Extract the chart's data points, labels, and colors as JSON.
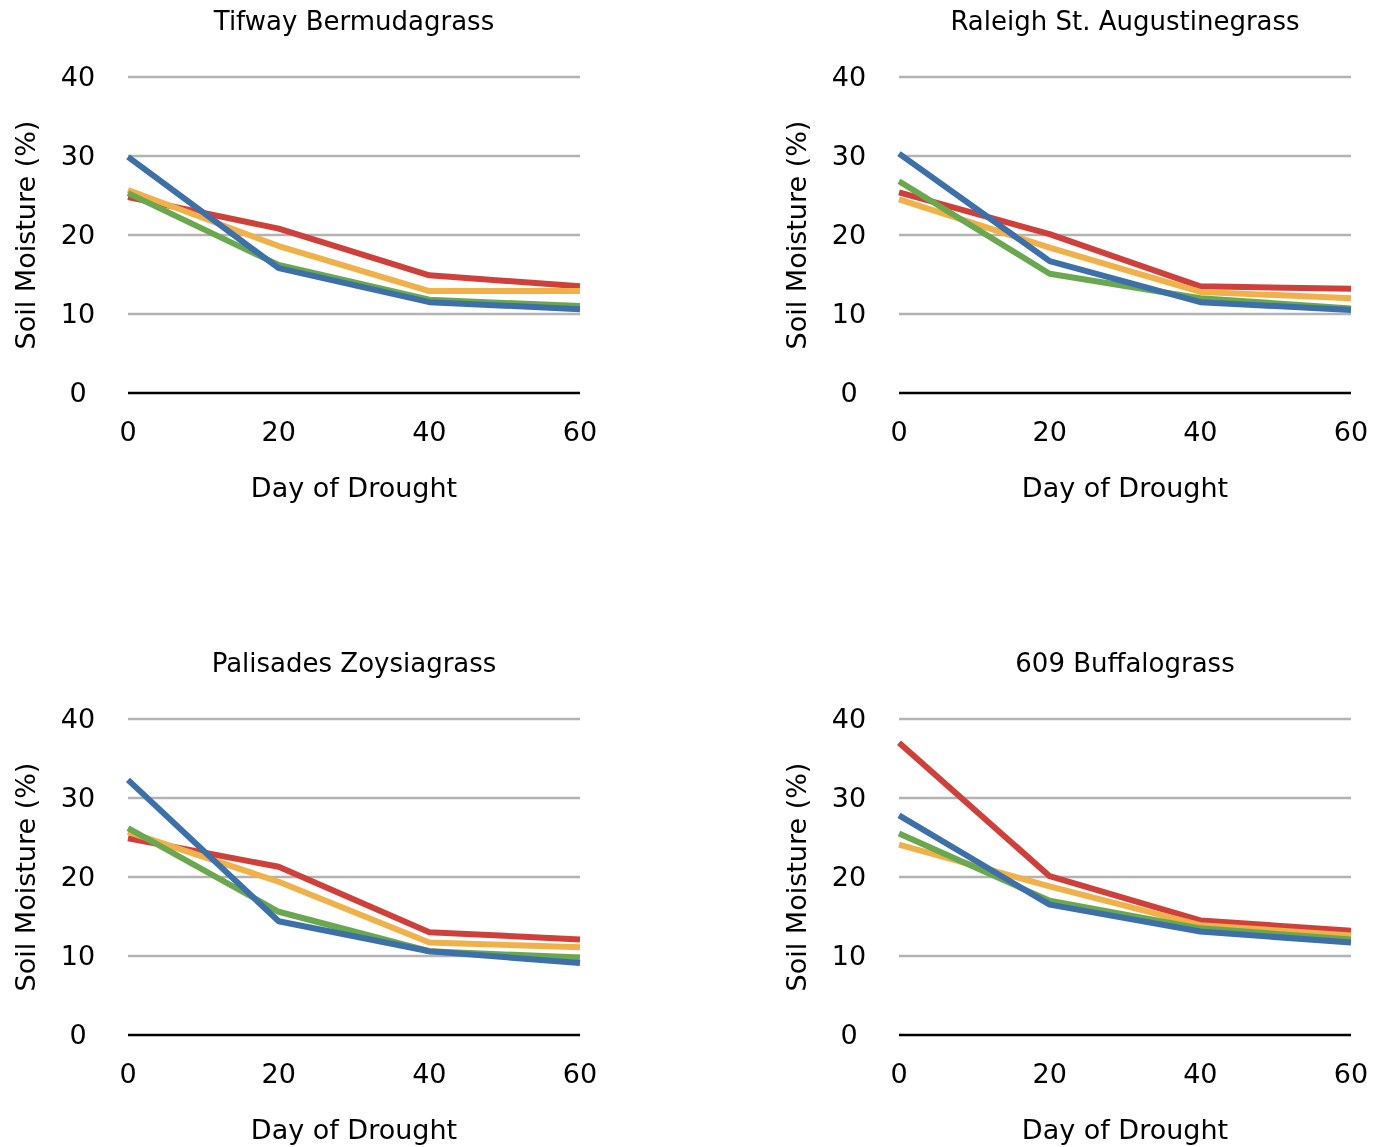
{
  "chart_data": [
    {
      "type": "line",
      "title": "Tifway Bermudagrass",
      "xlabel": "Day of Drought",
      "ylabel": "Soil Moisture (%)",
      "x": [
        0,
        20,
        40,
        60
      ],
      "xlim": [
        0,
        60
      ],
      "xticks": [
        0,
        20,
        40,
        60
      ],
      "ylim": [
        0,
        40
      ],
      "yticks": [
        0,
        10,
        20,
        30,
        40
      ],
      "grid": "y",
      "marker": "none",
      "line_style": "solid",
      "series": [
        {
          "color": "#d0403b",
          "values": [
            24.8,
            20.8,
            14.9,
            13.5
          ]
        },
        {
          "color": "#f0b04a",
          "values": [
            25.7,
            18.6,
            12.9,
            12.9
          ]
        },
        {
          "color": "#6aa84f",
          "values": [
            25.3,
            16.2,
            11.8,
            11.0
          ]
        },
        {
          "color": "#3d6fa8",
          "values": [
            29.9,
            15.8,
            11.5,
            10.6
          ]
        }
      ]
    },
    {
      "type": "line",
      "title": "Raleigh St. Augustinegrass",
      "xlabel": "Day of Drought",
      "ylabel": "Soil Moisture (%)",
      "x": [
        0,
        20,
        40,
        60
      ],
      "xlim": [
        0,
        60
      ],
      "xticks": [
        0,
        20,
        40,
        60
      ],
      "ylim": [
        0,
        40
      ],
      "yticks": [
        0,
        10,
        20,
        30,
        40
      ],
      "grid": "y",
      "marker": "none",
      "line_style": "solid",
      "series": [
        {
          "color": "#d0403b",
          "values": [
            25.4,
            20.1,
            13.5,
            13.2
          ]
        },
        {
          "color": "#f0b04a",
          "values": [
            24.5,
            18.4,
            12.8,
            12.0
          ]
        },
        {
          "color": "#6aa84f",
          "values": [
            26.8,
            15.1,
            12.0,
            10.7
          ]
        },
        {
          "color": "#3d6fa8",
          "values": [
            30.3,
            16.7,
            11.5,
            10.5
          ]
        }
      ]
    },
    {
      "type": "line",
      "title": "Palisades Zoysiagrass",
      "xlabel": "Day of Drought",
      "ylabel": "Soil Moisture (%)",
      "x": [
        0,
        20,
        40,
        60
      ],
      "xlim": [
        0,
        60
      ],
      "xticks": [
        0,
        20,
        40,
        60
      ],
      "ylim": [
        0,
        40
      ],
      "yticks": [
        0,
        10,
        20,
        30,
        40
      ],
      "grid": "y",
      "marker": "none",
      "line_style": "solid",
      "series": [
        {
          "color": "#d0403b",
          "values": [
            24.9,
            21.3,
            13.0,
            12.1
          ]
        },
        {
          "color": "#f0b04a",
          "values": [
            25.7,
            19.4,
            11.7,
            11.1
          ]
        },
        {
          "color": "#6aa84f",
          "values": [
            26.2,
            15.6,
            10.6,
            9.8
          ]
        },
        {
          "color": "#3d6fa8",
          "values": [
            32.3,
            14.4,
            10.6,
            9.1
          ]
        }
      ]
    },
    {
      "type": "line",
      "title": "609 Buffalograss",
      "xlabel": "Day of Drought",
      "ylabel": "Soil Moisture (%)",
      "x": [
        0,
        20,
        40,
        60
      ],
      "xlim": [
        0,
        60
      ],
      "xticks": [
        0,
        20,
        40,
        60
      ],
      "ylim": [
        0,
        40
      ],
      "yticks": [
        0,
        10,
        20,
        30,
        40
      ],
      "grid": "y",
      "marker": "none",
      "line_style": "solid",
      "series": [
        {
          "color": "#d0403b",
          "values": [
            37.0,
            20.1,
            14.5,
            13.2
          ]
        },
        {
          "color": "#f0b04a",
          "values": [
            24.1,
            18.8,
            13.9,
            12.6
          ]
        },
        {
          "color": "#6aa84f",
          "values": [
            25.5,
            17.0,
            13.5,
            12.1
          ]
        },
        {
          "color": "#3d6fa8",
          "values": [
            27.8,
            16.5,
            13.1,
            11.7
          ]
        }
      ]
    }
  ]
}
